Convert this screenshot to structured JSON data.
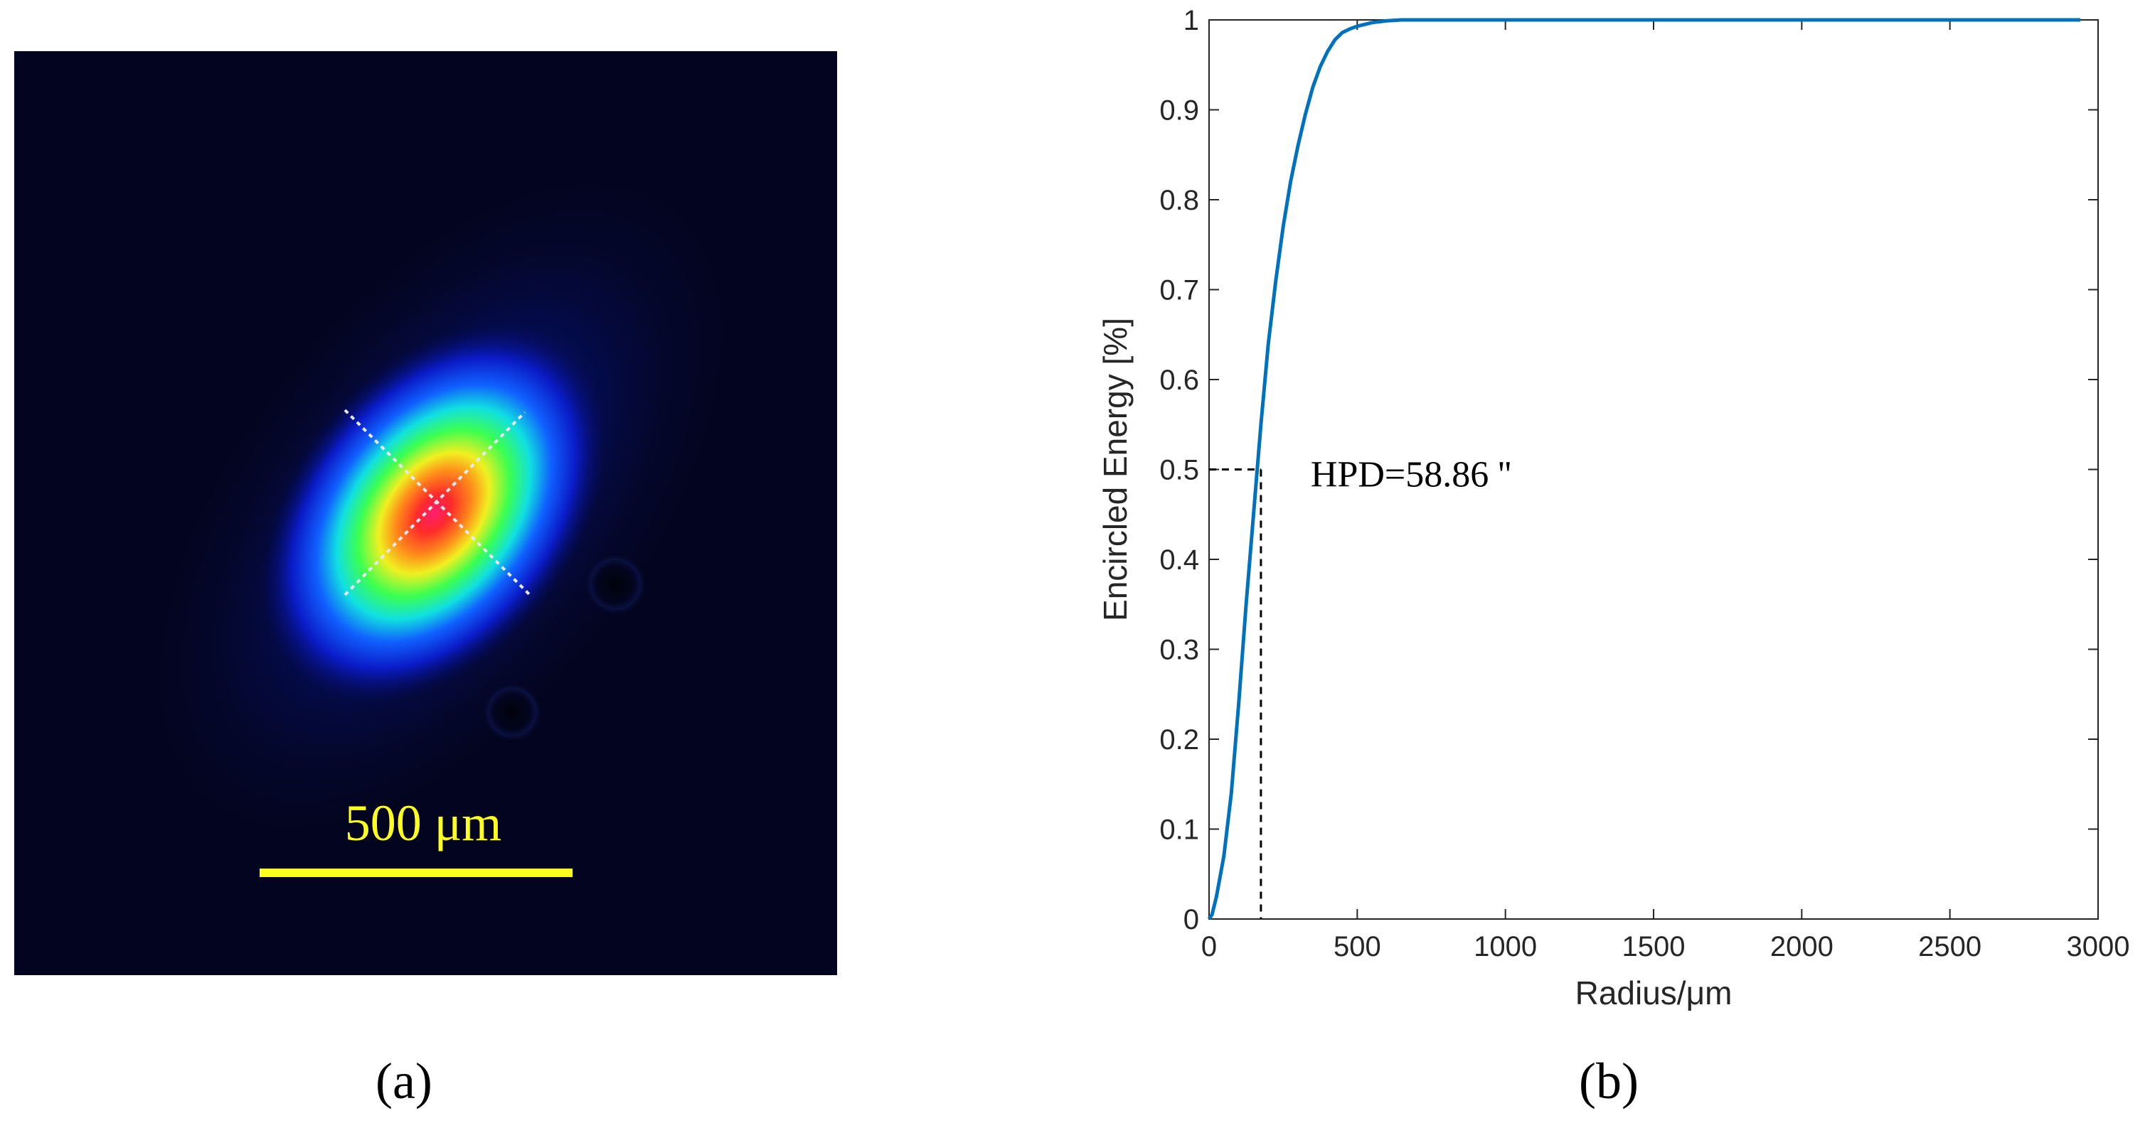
{
  "panel_a": {
    "caption": "(a)",
    "scale_bar_label": "500 μm",
    "colors": {
      "background": "#030520",
      "scale_bar": "#ffff1e",
      "crosshair": "#e8e8f0"
    }
  },
  "panel_b": {
    "caption": "(b)",
    "annotation": "HPD=58.86 ''"
  },
  "chart_data": {
    "type": "line",
    "title": "",
    "xlabel": "Radius/μm",
    "ylabel": "Encircled Energy [%]",
    "xlim": [
      0,
      3000
    ],
    "ylim": [
      0,
      1
    ],
    "xticks": [
      0,
      500,
      1000,
      1500,
      2000,
      2500,
      3000
    ],
    "yticks": [
      0,
      0.1,
      0.2,
      0.3,
      0.4,
      0.5,
      0.6,
      0.7,
      0.8,
      0.9,
      1
    ],
    "grid": false,
    "series": [
      {
        "color": "#0072bd",
        "x": [
          0,
          10,
          25,
          50,
          75,
          100,
          125,
          150,
          175,
          200,
          225,
          250,
          275,
          300,
          325,
          350,
          375,
          400,
          425,
          450,
          475,
          500,
          550,
          600,
          650,
          700,
          800,
          1000,
          1500,
          2000,
          2500,
          2940
        ],
        "y": [
          0,
          0.005,
          0.025,
          0.07,
          0.14,
          0.24,
          0.35,
          0.45,
          0.55,
          0.64,
          0.71,
          0.77,
          0.82,
          0.86,
          0.895,
          0.925,
          0.948,
          0.965,
          0.978,
          0.986,
          0.99,
          0.993,
          0.997,
          0.999,
          1.0,
          1.0,
          1.0,
          1.0,
          1.0,
          1.0,
          1.0,
          1.0
        ]
      }
    ],
    "annotation_point": {
      "x": 175,
      "y": 0.5
    }
  }
}
